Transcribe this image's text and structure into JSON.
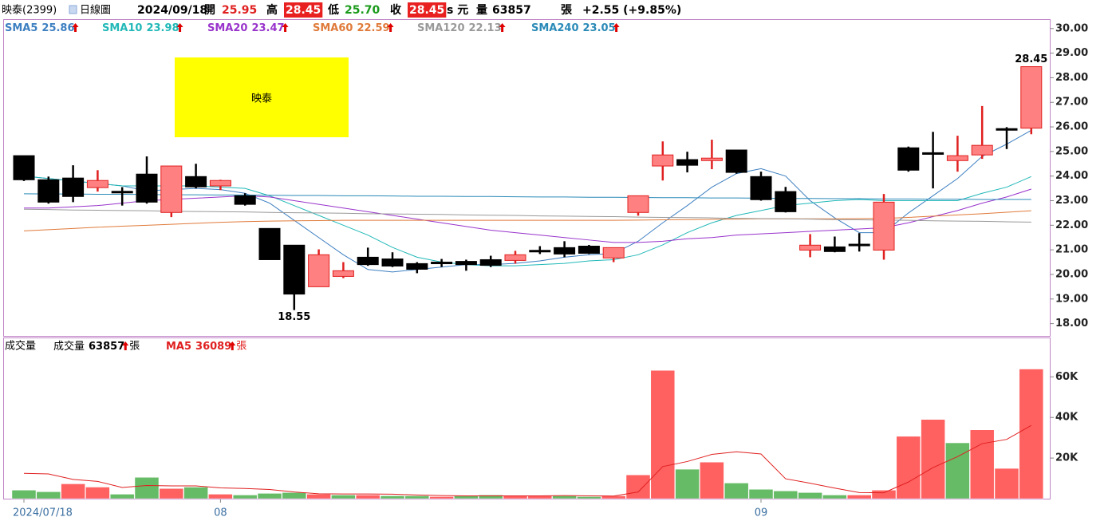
{
  "header": {
    "name": "映泰(2399)",
    "period": "日線圖",
    "date": "2024/09/18",
    "open_label": "開",
    "open": "25.95",
    "high_label": "高",
    "high": "28.45",
    "low_label": "低",
    "low": "25.70",
    "close_label": "收",
    "close": "28.45",
    "unit": "s 元",
    "volume_label": "量",
    "volume": "63857",
    "volume_unit": "張",
    "change": "+2.55 (+9.85%)"
  },
  "chart_data": [
    {
      "type": "candlestick",
      "annotation": "映泰",
      "categories": [
        "2024/07/18",
        null,
        null,
        null,
        null,
        null,
        null,
        null,
        "08",
        null,
        null,
        null,
        null,
        null,
        null,
        null,
        null,
        null,
        null,
        null,
        null,
        null,
        null,
        null,
        null,
        null,
        null,
        null,
        null,
        null,
        "09",
        null,
        null,
        null,
        null,
        null,
        null,
        null,
        null,
        null,
        null,
        null
      ],
      "open": [
        24.83,
        23.85,
        23.92,
        23.53,
        23.38,
        24.08,
        22.52,
        23.98,
        23.6,
        23.2,
        21.87,
        21.19,
        19.5,
        19.92,
        20.7,
        20.63,
        20.44,
        20.5,
        20.53,
        20.6,
        20.57,
        20.98,
        21.09,
        21.15,
        20.67,
        22.52,
        24.41,
        24.67,
        24.63,
        25.06,
        23.98,
        23.37,
        20.99,
        21.12,
        21.23,
        20.99,
        25.15,
        24.95,
        24.63,
        24.86,
        25.93,
        25.95
      ],
      "high": [
        24.83,
        23.98,
        24.44,
        24.24,
        23.55,
        24.8,
        24.41,
        24.5,
        23.85,
        23.3,
        21.87,
        21.19,
        21.02,
        20.5,
        21.09,
        20.9,
        20.5,
        20.63,
        20.6,
        20.76,
        20.96,
        21.15,
        21.35,
        21.2,
        21.09,
        23.2,
        25.41,
        24.99,
        25.48,
        25.06,
        24.18,
        23.56,
        21.64,
        21.54,
        21.68,
        23.27,
        25.2,
        25.8,
        25.64,
        26.85,
        25.99,
        28.45
      ],
      "low": [
        23.8,
        22.88,
        22.94,
        23.37,
        22.8,
        22.88,
        22.33,
        23.5,
        23.43,
        22.8,
        20.6,
        18.55,
        19.5,
        19.85,
        20.35,
        20.3,
        20.05,
        20.3,
        20.15,
        20.3,
        20.44,
        20.83,
        20.7,
        20.83,
        20.5,
        22.39,
        23.82,
        24.15,
        24.28,
        24.1,
        23.0,
        22.52,
        20.7,
        20.9,
        20.93,
        20.6,
        24.18,
        23.5,
        24.18,
        24.7,
        25.1,
        25.7
      ],
      "close": [
        23.85,
        22.94,
        23.17,
        23.82,
        23.35,
        22.94,
        24.41,
        23.56,
        23.82,
        22.85,
        20.6,
        19.2,
        20.8,
        20.15,
        20.4,
        20.34,
        20.21,
        20.47,
        20.4,
        20.37,
        20.8,
        20.95,
        20.83,
        20.86,
        21.09,
        23.2,
        24.86,
        24.44,
        24.73,
        24.15,
        23.04,
        22.55,
        21.19,
        20.93,
        21.2,
        22.94,
        24.24,
        24.93,
        24.83,
        25.25,
        25.9,
        28.45
      ],
      "up_color": "#ff8080",
      "up_edge": "#e02020",
      "down_color": "#000000",
      "series": [
        {
          "name": "SMA5",
          "color": "#3d7fc1",
          "values": [
            24.0,
            23.9,
            23.8,
            23.7,
            23.6,
            23.4,
            23.45,
            23.5,
            23.45,
            23.3,
            22.9,
            22.2,
            21.5,
            20.8,
            20.2,
            20.1,
            20.2,
            20.3,
            20.4,
            20.4,
            20.45,
            20.55,
            20.7,
            20.8,
            20.85,
            21.35,
            22.1,
            22.8,
            23.55,
            24.1,
            24.3,
            24.0,
            23.0,
            22.3,
            21.7,
            21.7,
            22.5,
            23.2,
            23.9,
            24.8,
            25.3,
            25.86
          ]
        },
        {
          "name": "SMA10",
          "color": "#22b8b8",
          "values": [
            24.0,
            23.9,
            23.8,
            23.7,
            23.6,
            23.6,
            23.6,
            23.6,
            23.55,
            23.5,
            23.2,
            22.8,
            22.4,
            22.0,
            21.6,
            21.1,
            20.7,
            20.5,
            20.4,
            20.35,
            20.35,
            20.4,
            20.45,
            20.55,
            20.6,
            20.8,
            21.2,
            21.7,
            22.1,
            22.4,
            22.6,
            22.8,
            22.9,
            23.0,
            23.05,
            23.0,
            23.0,
            23.0,
            23.0,
            23.3,
            23.55,
            23.98
          ]
        },
        {
          "name": "SMA20",
          "color": "#9933cc",
          "values": [
            22.7,
            22.7,
            22.75,
            22.8,
            22.9,
            23.0,
            23.05,
            23.1,
            23.15,
            23.2,
            23.15,
            23.0,
            22.85,
            22.7,
            22.55,
            22.4,
            22.25,
            22.1,
            21.95,
            21.8,
            21.7,
            21.6,
            21.5,
            21.4,
            21.3,
            21.3,
            21.35,
            21.45,
            21.5,
            21.6,
            21.65,
            21.7,
            21.75,
            21.8,
            21.85,
            21.9,
            22.1,
            22.35,
            22.6,
            22.9,
            23.15,
            23.47
          ]
        },
        {
          "name": "SMA60",
          "color": "#e07a3a",
          "values": [
            21.77,
            21.82,
            21.87,
            21.92,
            21.96,
            22.0,
            22.04,
            22.08,
            22.12,
            22.15,
            22.17,
            22.18,
            22.19,
            22.2,
            22.2,
            22.2,
            22.2,
            22.2,
            22.2,
            22.2,
            22.2,
            22.2,
            22.2,
            22.2,
            22.2,
            22.21,
            22.22,
            22.23,
            22.24,
            22.25,
            22.26,
            22.26,
            22.26,
            22.26,
            22.27,
            22.28,
            22.32,
            22.37,
            22.42,
            22.47,
            22.53,
            22.59
          ]
        },
        {
          "name": "SMA120",
          "color": "#999999",
          "values": [
            22.65,
            22.64,
            22.62,
            22.61,
            22.6,
            22.59,
            22.57,
            22.56,
            22.55,
            22.54,
            22.52,
            22.51,
            22.5,
            22.49,
            22.47,
            22.46,
            22.45,
            22.44,
            22.42,
            22.41,
            22.4,
            22.38,
            22.37,
            22.36,
            22.35,
            22.33,
            22.32,
            22.31,
            22.3,
            22.28,
            22.27,
            22.26,
            22.25,
            22.23,
            22.22,
            22.21,
            22.2,
            22.18,
            22.17,
            22.16,
            22.14,
            22.13
          ]
        },
        {
          "name": "SMA240",
          "color": "#2a8ab8",
          "values": [
            23.28,
            23.27,
            23.27,
            23.26,
            23.26,
            23.25,
            23.24,
            23.24,
            23.23,
            23.23,
            23.22,
            23.21,
            23.21,
            23.2,
            23.2,
            23.19,
            23.18,
            23.18,
            23.17,
            23.17,
            23.16,
            23.15,
            23.15,
            23.14,
            23.14,
            23.13,
            23.12,
            23.12,
            23.11,
            23.11,
            23.1,
            23.09,
            23.09,
            23.08,
            23.08,
            23.07,
            23.07,
            23.06,
            23.06,
            23.05,
            23.05,
            23.05
          ]
        }
      ],
      "ylim": [
        17.5,
        30.35
      ],
      "yticks": [
        {
          "value": 18,
          "label": "18.00"
        },
        {
          "value": 19,
          "label": "19.00"
        },
        {
          "value": 20,
          "label": "20.00"
        },
        {
          "value": 21,
          "label": "21.00"
        },
        {
          "value": 22,
          "label": "22.00"
        },
        {
          "value": 23,
          "label": "23.00"
        },
        {
          "value": 24,
          "label": "24.00"
        },
        {
          "value": 25,
          "label": "25.00"
        },
        {
          "value": 26,
          "label": "26.00"
        },
        {
          "value": 27,
          "label": "27.00"
        },
        {
          "value": 28,
          "label": "28.00"
        },
        {
          "value": 29,
          "label": "29.00"
        },
        {
          "value": 30,
          "label": "30.00"
        }
      ]
    },
    {
      "type": "bar",
      "title": "成交量",
      "unit": "張",
      "series": [
        {
          "name": "成交量",
          "values": [
            4200,
            3400,
            7300,
            5700,
            2200,
            10500,
            5000,
            5700,
            2200,
            1800,
            2600,
            3000,
            2200,
            1800,
            1800,
            1400,
            1400,
            1000,
            1400,
            1800,
            1400,
            1400,
            1400,
            1000,
            1400,
            11700,
            63200,
            14500,
            18000,
            7700,
            4600,
            3800,
            3000,
            1800,
            1800,
            4200,
            30700,
            39000,
            27500,
            33900,
            14900,
            63857
          ],
          "colors": [
            "#66bb66",
            "#66bb66",
            "#ff6060",
            "#ff6060",
            "#66bb66",
            "#66bb66",
            "#ff6060",
            "#66bb66",
            "#ff6060",
            "#66bb66",
            "#66bb66",
            "#66bb66",
            "#ff6060",
            "#66bb66",
            "#ff6060",
            "#66bb66",
            "#66bb66",
            "#ff6060",
            "#66bb66",
            "#66bb66",
            "#ff6060",
            "#ff6060",
            "#66bb66",
            "#66bb66",
            "#ff6060",
            "#ff6060",
            "#ff6060",
            "#66bb66",
            "#ff6060",
            "#66bb66",
            "#66bb66",
            "#66bb66",
            "#66bb66",
            "#66bb66",
            "#ff6060",
            "#ff6060",
            "#ff6060",
            "#ff6060",
            "#66bb66",
            "#ff6060",
            "#ff6060",
            "#ff6060"
          ]
        },
        {
          "name": "MA5",
          "color": "#e02020",
          "values": [
            12500,
            12200,
            9500,
            8500,
            5500,
            6500,
            6300,
            6300,
            5300,
            5000,
            4500,
            3300,
            2400,
            2300,
            2300,
            2200,
            1800,
            1500,
            1400,
            1400,
            1400,
            1400,
            1500,
            1400,
            1300,
            3300,
            15800,
            18300,
            21800,
            23100,
            22000,
            9800,
            7600,
            5200,
            3000,
            2900,
            8200,
            15300,
            20700,
            27100,
            29200,
            36089
          ]
        }
      ],
      "ylim": [
        0,
        79000
      ],
      "yticks": [
        {
          "value": 20000,
          "label": "20K"
        },
        {
          "value": 40000,
          "label": "40K"
        },
        {
          "value": 60000,
          "label": "60K"
        }
      ]
    }
  ]
}
